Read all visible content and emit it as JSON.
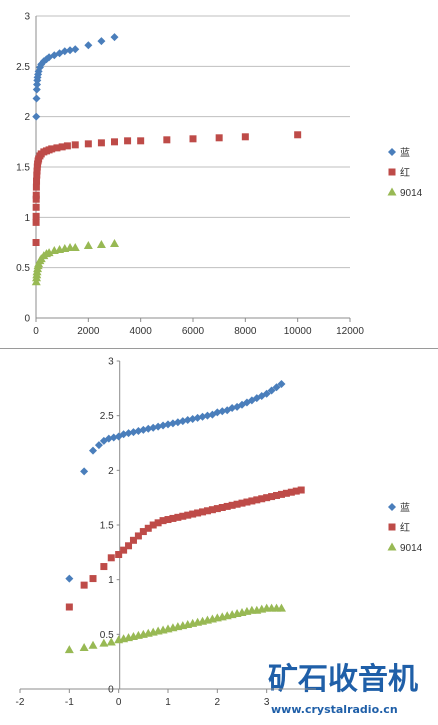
{
  "chart_data": [
    {
      "type": "scatter",
      "title": "",
      "xlabel": "",
      "ylabel": "",
      "xlim": [
        0,
        12000
      ],
      "ylim": [
        0,
        3
      ],
      "x_ticks": [
        "0",
        "2000",
        "4000",
        "6000",
        "8000",
        "10000",
        "12000"
      ],
      "y_ticks": [
        "0",
        "0.5",
        "1",
        "1.5",
        "2",
        "2.5",
        "3"
      ],
      "grid": "horizontal",
      "legend_position": "right",
      "series": [
        {
          "name": "蓝",
          "color": "#4a7ebb",
          "marker": "diamond",
          "points": [
            [
              10,
              2.0
            ],
            [
              20,
              2.18
            ],
            [
              30,
              2.27
            ],
            [
              40,
              2.32
            ],
            [
              50,
              2.36
            ],
            [
              60,
              2.39
            ],
            [
              80,
              2.42
            ],
            [
              100,
              2.45
            ],
            [
              150,
              2.49
            ],
            [
              200,
              2.52
            ],
            [
              300,
              2.55
            ],
            [
              400,
              2.57
            ],
            [
              500,
              2.59
            ],
            [
              700,
              2.61
            ],
            [
              900,
              2.63
            ],
            [
              1100,
              2.65
            ],
            [
              1300,
              2.66
            ],
            [
              1500,
              2.67
            ],
            [
              2000,
              2.71
            ],
            [
              2500,
              2.75
            ],
            [
              3000,
              2.79
            ]
          ]
        },
        {
          "name": "红",
          "color": "#be4b48",
          "marker": "square",
          "points": [
            [
              2,
              0.75
            ],
            [
              4,
              0.95
            ],
            [
              5,
              1.01
            ],
            [
              6,
              1.1
            ],
            [
              8,
              1.18
            ],
            [
              10,
              1.22
            ],
            [
              15,
              1.3
            ],
            [
              20,
              1.36
            ],
            [
              30,
              1.42
            ],
            [
              40,
              1.46
            ],
            [
              50,
              1.5
            ],
            [
              60,
              1.53
            ],
            [
              80,
              1.56
            ],
            [
              100,
              1.58
            ],
            [
              150,
              1.61
            ],
            [
              200,
              1.63
            ],
            [
              300,
              1.65
            ],
            [
              400,
              1.66
            ],
            [
              500,
              1.67
            ],
            [
              600,
              1.68
            ],
            [
              800,
              1.69
            ],
            [
              1000,
              1.7
            ],
            [
              1200,
              1.71
            ],
            [
              1500,
              1.72
            ],
            [
              2000,
              1.73
            ],
            [
              2500,
              1.74
            ],
            [
              3000,
              1.75
            ],
            [
              3500,
              1.76
            ],
            [
              4000,
              1.76
            ],
            [
              5000,
              1.77
            ],
            [
              6000,
              1.78
            ],
            [
              7000,
              1.79
            ],
            [
              8000,
              1.8
            ],
            [
              10000,
              1.82
            ]
          ]
        },
        {
          "name": "9014",
          "color": "#98b954",
          "marker": "triangle",
          "points": [
            [
              10,
              0.36
            ],
            [
              20,
              0.4
            ],
            [
              30,
              0.43
            ],
            [
              40,
              0.46
            ],
            [
              60,
              0.49
            ],
            [
              80,
              0.52
            ],
            [
              100,
              0.54
            ],
            [
              150,
              0.57
            ],
            [
              200,
              0.59
            ],
            [
              300,
              0.62
            ],
            [
              400,
              0.64
            ],
            [
              500,
              0.65
            ],
            [
              700,
              0.67
            ],
            [
              900,
              0.68
            ],
            [
              1100,
              0.69
            ],
            [
              1300,
              0.7
            ],
            [
              1500,
              0.7
            ],
            [
              2000,
              0.72
            ],
            [
              2500,
              0.73
            ],
            [
              3000,
              0.74
            ]
          ]
        }
      ]
    },
    {
      "type": "scatter",
      "title": "",
      "xlabel": "",
      "ylabel": "",
      "xlim": [
        -2,
        4
      ],
      "ylim": [
        0,
        3
      ],
      "x_ticks": [
        "-2",
        "-1",
        "0",
        "1",
        "2",
        "3"
      ],
      "y_ticks": [
        "0",
        "0.5",
        "1",
        "1.5",
        "2",
        "2.5",
        "3"
      ],
      "grid": "none",
      "legend_position": "right",
      "series": [
        {
          "name": "蓝",
          "color": "#4a7ebb",
          "marker": "diamond",
          "points": [
            [
              -1,
              1.01
            ],
            [
              -0.7,
              1.99
            ],
            [
              -0.52,
              2.18
            ],
            [
              -0.4,
              2.23
            ],
            [
              -0.3,
              2.27
            ],
            [
              -0.2,
              2.29
            ],
            [
              -0.1,
              2.3
            ],
            [
              0,
              2.31
            ],
            [
              0.1,
              2.33
            ],
            [
              0.2,
              2.34
            ],
            [
              0.3,
              2.35
            ],
            [
              0.4,
              2.36
            ],
            [
              0.5,
              2.37
            ],
            [
              0.6,
              2.38
            ],
            [
              0.7,
              2.39
            ],
            [
              0.8,
              2.4
            ],
            [
              0.9,
              2.41
            ],
            [
              1.0,
              2.42
            ],
            [
              1.1,
              2.43
            ],
            [
              1.2,
              2.44
            ],
            [
              1.3,
              2.45
            ],
            [
              1.4,
              2.46
            ],
            [
              1.5,
              2.47
            ],
            [
              1.6,
              2.48
            ],
            [
              1.7,
              2.49
            ],
            [
              1.8,
              2.5
            ],
            [
              1.9,
              2.51
            ],
            [
              2.0,
              2.53
            ],
            [
              2.1,
              2.54
            ],
            [
              2.2,
              2.55
            ],
            [
              2.3,
              2.57
            ],
            [
              2.4,
              2.58
            ],
            [
              2.5,
              2.6
            ],
            [
              2.6,
              2.62
            ],
            [
              2.7,
              2.64
            ],
            [
              2.8,
              2.66
            ],
            [
              2.9,
              2.68
            ],
            [
              3.0,
              2.7
            ],
            [
              3.1,
              2.73
            ],
            [
              3.2,
              2.76
            ],
            [
              3.3,
              2.79
            ]
          ]
        },
        {
          "name": "红",
          "color": "#be4b48",
          "marker": "square",
          "points": [
            [
              -1,
              0.75
            ],
            [
              -0.7,
              0.95
            ],
            [
              -0.52,
              1.01
            ],
            [
              -0.3,
              1.12
            ],
            [
              -0.15,
              1.2
            ],
            [
              0,
              1.23
            ],
            [
              0.1,
              1.27
            ],
            [
              0.2,
              1.31
            ],
            [
              0.3,
              1.36
            ],
            [
              0.4,
              1.4
            ],
            [
              0.5,
              1.44
            ],
            [
              0.6,
              1.47
            ],
            [
              0.7,
              1.5
            ],
            [
              0.8,
              1.52
            ],
            [
              0.9,
              1.54
            ],
            [
              1.0,
              1.55
            ],
            [
              1.1,
              1.56
            ],
            [
              1.2,
              1.57
            ],
            [
              1.3,
              1.58
            ],
            [
              1.4,
              1.59
            ],
            [
              1.5,
              1.6
            ],
            [
              1.6,
              1.61
            ],
            [
              1.7,
              1.62
            ],
            [
              1.8,
              1.63
            ],
            [
              1.9,
              1.64
            ],
            [
              2.0,
              1.65
            ],
            [
              2.1,
              1.66
            ],
            [
              2.2,
              1.67
            ],
            [
              2.3,
              1.68
            ],
            [
              2.4,
              1.69
            ],
            [
              2.5,
              1.7
            ],
            [
              2.6,
              1.71
            ],
            [
              2.7,
              1.72
            ],
            [
              2.8,
              1.73
            ],
            [
              2.9,
              1.74
            ],
            [
              3.0,
              1.75
            ],
            [
              3.1,
              1.76
            ],
            [
              3.2,
              1.77
            ],
            [
              3.3,
              1.78
            ],
            [
              3.4,
              1.79
            ],
            [
              3.5,
              1.8
            ],
            [
              3.6,
              1.81
            ],
            [
              3.7,
              1.82
            ]
          ]
        },
        {
          "name": "9014",
          "color": "#98b954",
          "marker": "triangle",
          "points": [
            [
              -1,
              0.36
            ],
            [
              -0.7,
              0.38
            ],
            [
              -0.52,
              0.4
            ],
            [
              -0.3,
              0.42
            ],
            [
              -0.15,
              0.43
            ],
            [
              0,
              0.45
            ],
            [
              0.1,
              0.46
            ],
            [
              0.2,
              0.47
            ],
            [
              0.3,
              0.48
            ],
            [
              0.4,
              0.49
            ],
            [
              0.5,
              0.5
            ],
            [
              0.6,
              0.51
            ],
            [
              0.7,
              0.52
            ],
            [
              0.8,
              0.53
            ],
            [
              0.9,
              0.54
            ],
            [
              1.0,
              0.55
            ],
            [
              1.1,
              0.56
            ],
            [
              1.2,
              0.57
            ],
            [
              1.3,
              0.58
            ],
            [
              1.4,
              0.59
            ],
            [
              1.5,
              0.6
            ],
            [
              1.6,
              0.61
            ],
            [
              1.7,
              0.62
            ],
            [
              1.8,
              0.63
            ],
            [
              1.9,
              0.64
            ],
            [
              2.0,
              0.65
            ],
            [
              2.1,
              0.66
            ],
            [
              2.2,
              0.67
            ],
            [
              2.3,
              0.68
            ],
            [
              2.4,
              0.69
            ],
            [
              2.5,
              0.7
            ],
            [
              2.6,
              0.71
            ],
            [
              2.7,
              0.72
            ],
            [
              2.8,
              0.72
            ],
            [
              2.9,
              0.73
            ],
            [
              3.0,
              0.74
            ],
            [
              3.1,
              0.74
            ],
            [
              3.2,
              0.74
            ],
            [
              3.3,
              0.74
            ]
          ]
        }
      ]
    }
  ],
  "watermark": {
    "title": "矿石收音机",
    "url": "www.crystalradio.cn"
  }
}
